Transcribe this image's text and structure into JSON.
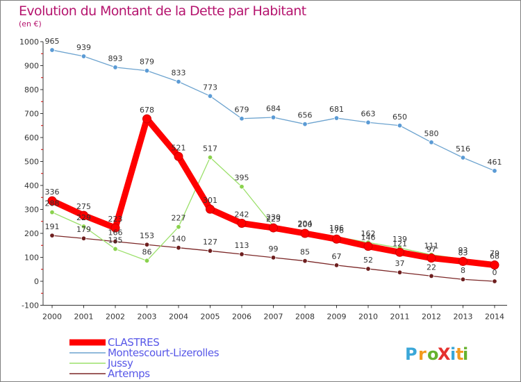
{
  "title": "Evolution du Montant de la Dette par Habitant",
  "subtitle": "(en €)",
  "logo_text": "ProXiti",
  "logo_letters": [
    "P",
    "r",
    "o",
    "X",
    "i",
    "t",
    "i"
  ],
  "logo_colors": [
    "#3aa7d8",
    "#f39a1e",
    "#66b22e",
    "#e5312f",
    "#3aa7d8",
    "#f39a1e",
    "#66b22e"
  ],
  "chart_data": {
    "type": "line",
    "title": "Evolution du Montant de la Dette par Habitant",
    "ylabel": "(en €)",
    "xlabel": "",
    "x": [
      "2000",
      "2001",
      "2002",
      "2003",
      "2004",
      "2005",
      "2006",
      "2007",
      "2008",
      "2009",
      "2010",
      "2011",
      "2012",
      "2013",
      "2014"
    ],
    "ylim": [
      -100,
      1000
    ],
    "yticks": [
      -100,
      0,
      100,
      200,
      300,
      400,
      500,
      600,
      700,
      800,
      900,
      1000
    ],
    "grid": false,
    "legend_position": "bottom-left",
    "series": [
      {
        "name": "CLASTRES",
        "color": "#ff0000",
        "marker_fill": "#ff0000",
        "values": [
          336,
          275,
          223,
          678,
          521,
          301,
          242,
          223,
          200,
          176,
          146,
          121,
          97,
          83,
          68
        ]
      },
      {
        "name": "Montescourt-Lizerolles",
        "color": "#6ca3cf",
        "marker_fill": "#5b9bd5",
        "values": [
          965,
          939,
          893,
          879,
          833,
          773,
          679,
          684,
          656,
          681,
          663,
          650,
          580,
          516,
          461
        ]
      },
      {
        "name": "Jussy",
        "color": "#9be06a",
        "marker_fill": "#8ad24d",
        "values": [
          288,
          229,
          135,
          86,
          227,
          517,
          395,
          230,
          204,
          186,
          162,
          139,
          111,
          93,
          79
        ]
      },
      {
        "name": "Artemps",
        "color": "#7b2626",
        "marker_fill": "#6e1f1f",
        "values": [
          191,
          179,
          166,
          153,
          140,
          127,
          113,
          99,
          85,
          67,
          52,
          37,
          22,
          8,
          0
        ]
      }
    ]
  }
}
